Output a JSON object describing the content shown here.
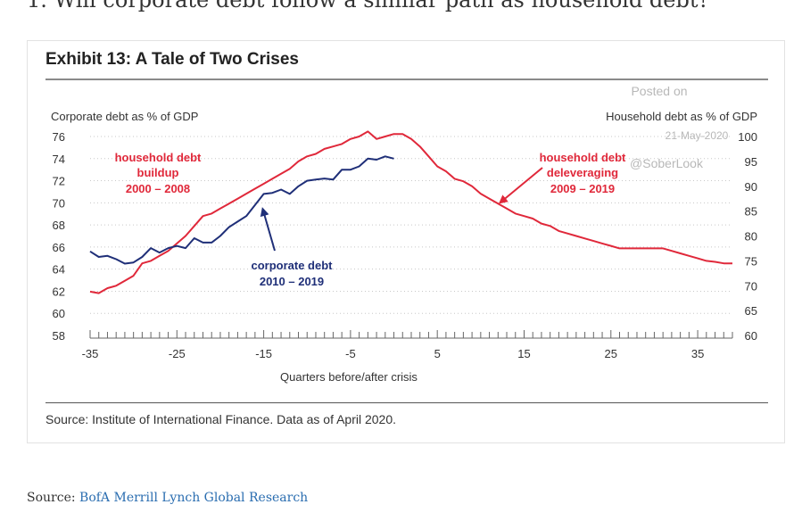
{
  "page": {
    "question_text": "1. Will corporate debt follow a similar path as household debt?",
    "source_prefix": "Source: ",
    "source_link": "BofA Merrill Lynch Global Research"
  },
  "exhibit": {
    "title": "Exhibit 13: A Tale of Two Crises",
    "source": "Source: Institute of International Finance. Data as of April 2020."
  },
  "watermark": {
    "posted_on": "Posted on",
    "date": "21-May-2020",
    "handle": "@SoberLook"
  },
  "colors": {
    "household": "#e0283a",
    "corporate": "#1f2f78",
    "axis": "#666666",
    "grid": "#c8c8c8"
  },
  "chart_data": {
    "type": "line",
    "xlabel": "Quarters before/after crisis",
    "ylabel_left": "Corporate debt as % of GDP",
    "ylabel_right": "Household debt as % of GDP",
    "xlim": [
      -35,
      39
    ],
    "ylim_left": [
      58,
      76
    ],
    "ylim_right": [
      60,
      100
    ],
    "x_ticks": [
      -35,
      -25,
      -15,
      -5,
      5,
      15,
      25,
      35
    ],
    "y_ticks_left": [
      58,
      60,
      62,
      64,
      66,
      68,
      70,
      72,
      74,
      76
    ],
    "y_ticks_right": [
      60,
      65,
      70,
      75,
      80,
      85,
      90,
      95,
      100
    ],
    "grid": "horizontal dotted",
    "series": [
      {
        "axis": "right",
        "x": [
          -35,
          -34,
          -33,
          -32,
          -31,
          -30,
          -29,
          -28,
          -27,
          -26,
          -25,
          -24,
          -23,
          -22,
          -21,
          -20,
          -19,
          -18,
          -17,
          -16,
          -15,
          -14,
          -13,
          -12,
          -11,
          -10,
          -9,
          -8,
          -7,
          -6,
          -5,
          -4,
          -3,
          -2,
          -1,
          0,
          1,
          2,
          3,
          4,
          5,
          6,
          7,
          8,
          9,
          10,
          11,
          12,
          13,
          14,
          15,
          16,
          17,
          18,
          19,
          20,
          21,
          22,
          23,
          24,
          25,
          26,
          27,
          28,
          29,
          30,
          31,
          32,
          33,
          34,
          35,
          36,
          37,
          38,
          39
        ],
        "values": [
          68.8,
          68.5,
          69.5,
          70,
          71,
          72,
          74.5,
          75,
          76,
          77,
          78.5,
          80,
          82,
          84,
          84.5,
          85.5,
          86.5,
          87.5,
          88.5,
          89.5,
          90.5,
          91.5,
          92.5,
          93.5,
          95,
          96,
          96.5,
          97.5,
          98,
          98.5,
          99.5,
          100,
          101,
          99.5,
          100,
          100.5,
          100.5,
          99.5,
          98,
          96,
          94,
          93,
          91.5,
          91,
          90,
          88.5,
          87.5,
          86.5,
          85.5,
          84.5,
          84,
          83.5,
          82.5,
          82,
          81,
          80.5,
          80,
          79.5,
          79,
          78.5,
          78,
          77.5,
          77.5,
          77.5,
          77.5,
          77.5,
          77.5,
          77,
          76.5,
          76,
          75.5,
          75,
          74.8,
          74.5,
          74.5
        ]
      },
      {
        "axis": "left",
        "x": [
          -35,
          -34,
          -33,
          -32,
          -31,
          -30,
          -29,
          -28,
          -27,
          -26,
          -25,
          -24,
          -23,
          -22,
          -21,
          -20,
          -19,
          -18,
          -17,
          -16,
          -15,
          -14,
          -13,
          -12,
          -11,
          -10,
          -9,
          -8,
          -7,
          -6,
          -5,
          -4,
          -3,
          -2,
          -1,
          0
        ],
        "values": [
          65.6,
          65.1,
          65.2,
          64.9,
          64.5,
          64.6,
          65.1,
          65.9,
          65.5,
          65.9,
          66.1,
          65.9,
          66.8,
          66.4,
          66.4,
          67.0,
          67.8,
          68.3,
          68.8,
          69.8,
          70.8,
          70.9,
          71.2,
          70.8,
          71.5,
          72.0,
          72.1,
          72.2,
          72.1,
          73.0,
          73.0,
          73.3,
          74.0,
          73.9,
          74.2,
          74.0
        ]
      }
    ],
    "annotations": [
      {
        "id": "household-buildup",
        "lines": [
          "household debt",
          "buildup",
          "2000 – 2008"
        ]
      },
      {
        "id": "household-deleveraging",
        "lines": [
          "household debt",
          "deleveraging",
          "2009 – 2019"
        ]
      },
      {
        "id": "corporate-debt",
        "lines": [
          "corporate debt",
          "2010 – 2019"
        ]
      }
    ]
  }
}
